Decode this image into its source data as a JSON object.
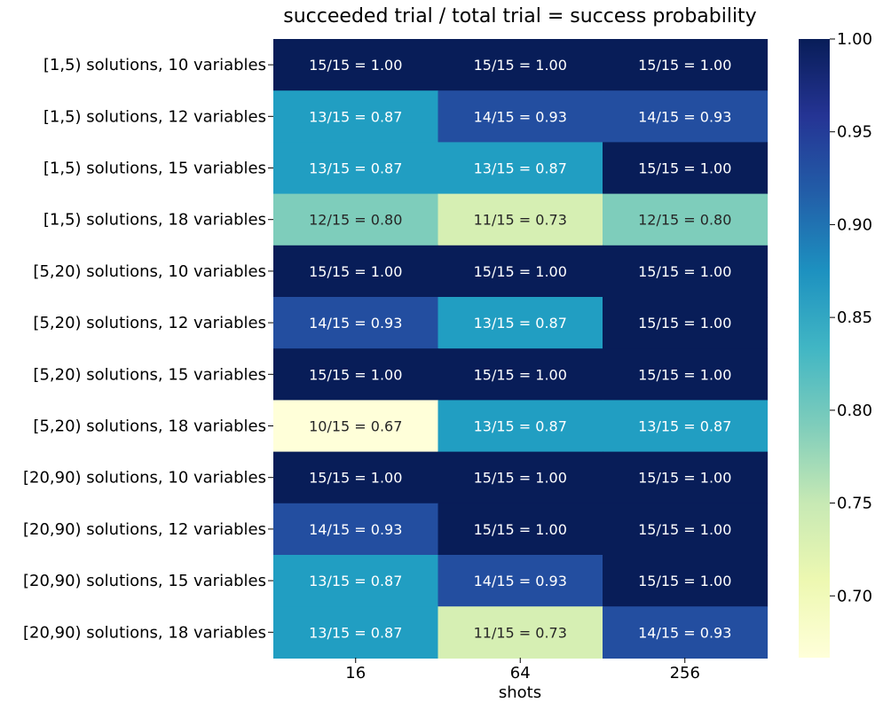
{
  "chart_data": {
    "type": "heatmap",
    "title": "succeeded trial / total trial = success probability",
    "xlabel": "shots",
    "ylabel": "",
    "x_categories": [
      "16",
      "64",
      "256"
    ],
    "y_categories": [
      "[1,5) solutions, 10 variables",
      "[1,5) solutions, 12 variables",
      "[1,5) solutions, 15 variables",
      "[1,5) solutions, 18 variables",
      "[5,20) solutions, 10 variables",
      "[5,20) solutions, 12 variables",
      "[5,20) solutions, 15 variables",
      "[5,20) solutions, 18 variables",
      "[20,90) solutions, 10 variables",
      "[20,90) solutions, 12 variables",
      "[20,90) solutions, 15 variables",
      "[20,90) solutions, 18 variables"
    ],
    "values": [
      [
        1.0,
        1.0,
        1.0
      ],
      [
        0.8667,
        0.9333,
        0.9333
      ],
      [
        0.8667,
        0.8667,
        1.0
      ],
      [
        0.8,
        0.7333,
        0.8
      ],
      [
        1.0,
        1.0,
        1.0
      ],
      [
        0.9333,
        0.8667,
        1.0
      ],
      [
        1.0,
        1.0,
        1.0
      ],
      [
        0.6667,
        0.8667,
        0.8667
      ],
      [
        1.0,
        1.0,
        1.0
      ],
      [
        0.9333,
        1.0,
        1.0
      ],
      [
        0.8667,
        0.9333,
        1.0
      ],
      [
        0.8667,
        0.7333,
        0.9333
      ]
    ],
    "annotations": [
      [
        "15/15 = 1.00",
        "15/15 = 1.00",
        "15/15 = 1.00"
      ],
      [
        "13/15 = 0.87",
        "14/15 = 0.93",
        "14/15 = 0.93"
      ],
      [
        "13/15 = 0.87",
        "13/15 = 0.87",
        "15/15 = 1.00"
      ],
      [
        "12/15 = 0.80",
        "11/15 = 0.73",
        "12/15 = 0.80"
      ],
      [
        "15/15 = 1.00",
        "15/15 = 1.00",
        "15/15 = 1.00"
      ],
      [
        "14/15 = 0.93",
        "13/15 = 0.87",
        "15/15 = 1.00"
      ],
      [
        "15/15 = 1.00",
        "15/15 = 1.00",
        "15/15 = 1.00"
      ],
      [
        "10/15 = 0.67",
        "13/15 = 0.87",
        "13/15 = 0.87"
      ],
      [
        "15/15 = 1.00",
        "15/15 = 1.00",
        "15/15 = 1.00"
      ],
      [
        "14/15 = 0.93",
        "15/15 = 1.00",
        "15/15 = 1.00"
      ],
      [
        "13/15 = 0.87",
        "14/15 = 0.93",
        "15/15 = 1.00"
      ],
      [
        "13/15 = 0.87",
        "11/15 = 0.73",
        "14/15 = 0.93"
      ]
    ],
    "colormap": "YlGnBu",
    "vmin": 0.6667,
    "vmax": 1.0,
    "colorbar_ticks": [
      "0.70",
      "0.75",
      "0.80",
      "0.85",
      "0.90",
      "0.95",
      "1.00"
    ],
    "colors": {
      "1.00": "#081d58",
      "0.93": "#234ea0",
      "0.87": "#219ec2",
      "0.80": "#7ecdbb",
      "0.73": "#d6efb3",
      "0.67": "#ffffd9"
    }
  }
}
